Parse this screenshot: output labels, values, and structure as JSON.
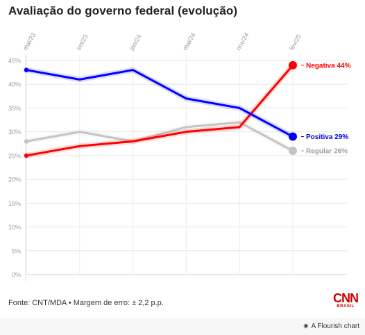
{
  "title": "Avaliação do governo federal (evolução)",
  "source": "Fonte: CNT/MDA • Margem de erro: ± 2,2 p.p.",
  "logo": {
    "mark": "CNN",
    "sub": "BRASIL"
  },
  "flourish": {
    "icon": "flourish-star-icon",
    "text": "A Flourish chart"
  },
  "chart_data": {
    "type": "line",
    "x_type": "categorical",
    "x_tick_labels": [
      "mai/23",
      "set/23",
      "jan/24",
      "mai/24",
      "nov/24",
      "fev/25"
    ],
    "x_categories": [
      "mai/23",
      "set/23",
      "jan/24",
      "mai/24",
      "nov/24",
      "fev/25"
    ],
    "x_ticks": [
      "mai/23",
      "set/23",
      "jan/24",
      "mai/24",
      "nov/24",
      "fev/25"
    ],
    "ylim": [
      0,
      45
    ],
    "y_ticks": [
      0,
      5,
      10,
      15,
      20,
      25,
      30,
      35,
      40,
      45
    ],
    "y_tick_labels": [
      "0%",
      "5%",
      "10%",
      "15%",
      "20%",
      "25%",
      "30%",
      "35%",
      "40%",
      "45%"
    ],
    "grid": true,
    "legend": "end-of-line labels (right)",
    "series": [
      {
        "name": "Positiva",
        "end_label": "Positiva 29%",
        "color": "#0000ff",
        "label_color": "#0000ff",
        "points": [
          {
            "x": "mai/23",
            "y": 43
          },
          {
            "x": "set/23",
            "y": 41
          },
          {
            "x": "jan/24",
            "y": 43
          },
          {
            "x": "mai/24",
            "y": 37
          },
          {
            "x": "nov/24",
            "y": 35
          },
          {
            "x": "fev/25",
            "y": 29
          }
        ]
      },
      {
        "name": "Negativa",
        "end_label": "Negativa 44%",
        "color": "#ff0000",
        "label_color": "#ff0000",
        "points": [
          {
            "x": "mai/23",
            "y": 25
          },
          {
            "x": "set/23",
            "y": 27
          },
          {
            "x": "jan/24",
            "y": 28
          },
          {
            "x": "mai/24",
            "y": 30
          },
          {
            "x": "nov/24",
            "y": 31
          },
          {
            "x": "fev/25",
            "y": 44
          }
        ]
      },
      {
        "name": "Regular",
        "end_label": "Regular 26%",
        "color": "#c4c4c4",
        "label_color": "#a0a0a0",
        "points": [
          {
            "x": "mai/23",
            "y": 28
          },
          {
            "x": "set/23",
            "y": 30
          },
          {
            "x": "jan/24",
            "y": 28
          },
          {
            "x": "mai/24",
            "y": 31
          },
          {
            "x": "nov/24",
            "y": 32
          },
          {
            "x": "fev/25",
            "y": 26
          }
        ]
      }
    ]
  }
}
